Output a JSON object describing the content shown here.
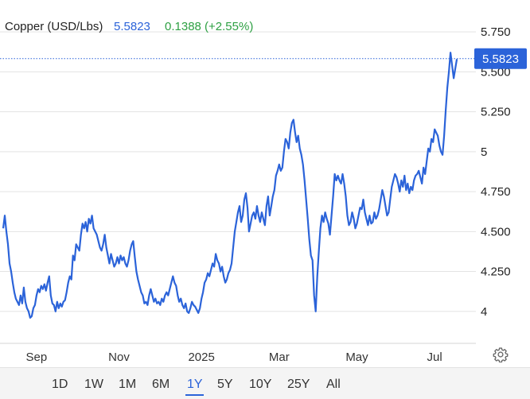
{
  "header": {
    "instrument": "Copper (USD/Lbs)",
    "price": "5.5823",
    "change": "0.1388 (+2.55%)"
  },
  "price_tag": "5.5823",
  "colors": {
    "line": "#2b63d9",
    "price_tag_bg": "#2b63d9",
    "change": "#2ea043",
    "grid": "#e3e3e3",
    "range_active": "#2b63d9"
  },
  "range_buttons": [
    "1D",
    "1W",
    "1M",
    "6M",
    "1Y",
    "5Y",
    "10Y",
    "25Y",
    "All"
  ],
  "range_active": "1Y",
  "settings_icon": "gear-icon",
  "chart_data": {
    "type": "line",
    "title": "Copper (USD/Lbs)",
    "xlabel": "",
    "ylabel": "",
    "grid": true,
    "y_axis_side": "right",
    "ylim": [
      3.8,
      5.85
    ],
    "y_ticks": [
      {
        "value": 4,
        "label": "4"
      },
      {
        "value": 4.25,
        "label": "4.250"
      },
      {
        "value": 4.5,
        "label": "4.500"
      },
      {
        "value": 4.75,
        "label": "4.750"
      },
      {
        "value": 5,
        "label": "5"
      },
      {
        "value": 5.25,
        "label": "5.250"
      },
      {
        "value": 5.5,
        "label": "5.500"
      },
      {
        "value": 5.75,
        "label": "5.750"
      }
    ],
    "x_ticks": [
      "Sep",
      "Nov",
      "2025",
      "Mar",
      "May",
      "Jul"
    ],
    "x_tick_positions": [
      21,
      73,
      125,
      174,
      223,
      272
    ],
    "x_domain": [
      0,
      295
    ],
    "last_value": 5.5823,
    "series": [
      {
        "values": [
          [
            0,
            4.52
          ],
          [
            1,
            4.6
          ],
          [
            2,
            4.5
          ],
          [
            3,
            4.42
          ],
          [
            4,
            4.3
          ],
          [
            5,
            4.25
          ],
          [
            6,
            4.18
          ],
          [
            7,
            4.12
          ],
          [
            8,
            4.08
          ],
          [
            9,
            4.06
          ],
          [
            10,
            4.04
          ],
          [
            11,
            4.1
          ],
          [
            12,
            4.05
          ],
          [
            13,
            4.15
          ],
          [
            14,
            4.06
          ],
          [
            15,
            4.02
          ],
          [
            16,
            4.0
          ],
          [
            17,
            3.96
          ],
          [
            18,
            3.97
          ],
          [
            19,
            4.02
          ],
          [
            20,
            4.04
          ],
          [
            21,
            4.1
          ],
          [
            22,
            4.14
          ],
          [
            23,
            4.12
          ],
          [
            24,
            4.16
          ],
          [
            25,
            4.14
          ],
          [
            26,
            4.17
          ],
          [
            27,
            4.13
          ],
          [
            28,
            4.18
          ],
          [
            29,
            4.22
          ],
          [
            30,
            4.1
          ],
          [
            31,
            4.05
          ],
          [
            32,
            4.04
          ],
          [
            33,
            4.0
          ],
          [
            34,
            4.06
          ],
          [
            35,
            4.02
          ],
          [
            36,
            4.05
          ],
          [
            37,
            4.03
          ],
          [
            38,
            4.06
          ],
          [
            39,
            4.07
          ],
          [
            40,
            4.12
          ],
          [
            41,
            4.18
          ],
          [
            42,
            4.22
          ],
          [
            43,
            4.2
          ],
          [
            44,
            4.35
          ],
          [
            45,
            4.32
          ],
          [
            46,
            4.42
          ],
          [
            47,
            4.4
          ],
          [
            48,
            4.38
          ],
          [
            49,
            4.48
          ],
          [
            50,
            4.55
          ],
          [
            51,
            4.52
          ],
          [
            52,
            4.56
          ],
          [
            53,
            4.5
          ],
          [
            54,
            4.58
          ],
          [
            55,
            4.55
          ],
          [
            56,
            4.6
          ],
          [
            57,
            4.52
          ],
          [
            58,
            4.5
          ],
          [
            59,
            4.48
          ],
          [
            60,
            4.44
          ],
          [
            61,
            4.4
          ],
          [
            62,
            4.38
          ],
          [
            63,
            4.42
          ],
          [
            64,
            4.48
          ],
          [
            65,
            4.4
          ],
          [
            66,
            4.35
          ],
          [
            67,
            4.3
          ],
          [
            68,
            4.36
          ],
          [
            69,
            4.32
          ],
          [
            70,
            4.28
          ],
          [
            71,
            4.3
          ],
          [
            72,
            4.34
          ],
          [
            73,
            4.3
          ],
          [
            74,
            4.35
          ],
          [
            75,
            4.32
          ],
          [
            76,
            4.34
          ],
          [
            77,
            4.3
          ],
          [
            78,
            4.28
          ],
          [
            79,
            4.32
          ],
          [
            80,
            4.38
          ],
          [
            81,
            4.42
          ],
          [
            82,
            4.44
          ],
          [
            83,
            4.34
          ],
          [
            84,
            4.25
          ],
          [
            85,
            4.2
          ],
          [
            86,
            4.16
          ],
          [
            87,
            4.12
          ],
          [
            88,
            4.1
          ],
          [
            89,
            4.05
          ],
          [
            90,
            4.06
          ],
          [
            91,
            4.04
          ],
          [
            92,
            4.1
          ],
          [
            93,
            4.14
          ],
          [
            94,
            4.1
          ],
          [
            95,
            4.06
          ],
          [
            96,
            4.08
          ],
          [
            97,
            4.05
          ],
          [
            98,
            4.06
          ],
          [
            99,
            4.04
          ],
          [
            100,
            4.08
          ],
          [
            101,
            4.06
          ],
          [
            102,
            4.1
          ],
          [
            103,
            4.12
          ],
          [
            104,
            4.1
          ],
          [
            105,
            4.14
          ],
          [
            106,
            4.18
          ],
          [
            107,
            4.22
          ],
          [
            108,
            4.18
          ],
          [
            109,
            4.16
          ],
          [
            110,
            4.1
          ],
          [
            111,
            4.06
          ],
          [
            112,
            4.08
          ],
          [
            113,
            4.04
          ],
          [
            114,
            4.02
          ],
          [
            115,
            4.05
          ],
          [
            116,
            4.0
          ],
          [
            117,
            3.99
          ],
          [
            118,
            4.02
          ],
          [
            119,
            4.06
          ],
          [
            120,
            4.04
          ],
          [
            121,
            4.03
          ],
          [
            122,
            4.01
          ],
          [
            123,
            3.99
          ],
          [
            124,
            4.02
          ],
          [
            125,
            4.08
          ],
          [
            126,
            4.12
          ],
          [
            127,
            4.18
          ],
          [
            128,
            4.2
          ],
          [
            129,
            4.24
          ],
          [
            130,
            4.22
          ],
          [
            131,
            4.26
          ],
          [
            132,
            4.3
          ],
          [
            133,
            4.28
          ],
          [
            134,
            4.36
          ],
          [
            135,
            4.32
          ],
          [
            136,
            4.3
          ],
          [
            137,
            4.25
          ],
          [
            138,
            4.28
          ],
          [
            139,
            4.22
          ],
          [
            140,
            4.18
          ],
          [
            141,
            4.2
          ],
          [
            142,
            4.24
          ],
          [
            143,
            4.26
          ],
          [
            144,
            4.3
          ],
          [
            145,
            4.4
          ],
          [
            146,
            4.5
          ],
          [
            147,
            4.56
          ],
          [
            148,
            4.62
          ],
          [
            149,
            4.66
          ],
          [
            150,
            4.56
          ],
          [
            151,
            4.6
          ],
          [
            152,
            4.7
          ],
          [
            153,
            4.74
          ],
          [
            154,
            4.65
          ],
          [
            155,
            4.5
          ],
          [
            156,
            4.55
          ],
          [
            157,
            4.6
          ],
          [
            158,
            4.62
          ],
          [
            159,
            4.58
          ],
          [
            160,
            4.66
          ],
          [
            161,
            4.6
          ],
          [
            162,
            4.56
          ],
          [
            163,
            4.62
          ],
          [
            164,
            4.58
          ],
          [
            165,
            4.54
          ],
          [
            166,
            4.66
          ],
          [
            167,
            4.72
          ],
          [
            168,
            4.6
          ],
          [
            169,
            4.66
          ],
          [
            170,
            4.72
          ],
          [
            171,
            4.76
          ],
          [
            172,
            4.85
          ],
          [
            173,
            4.88
          ],
          [
            174,
            4.92
          ],
          [
            175,
            4.88
          ],
          [
            176,
            4.9
          ],
          [
            177,
            5.0
          ],
          [
            178,
            5.08
          ],
          [
            179,
            5.06
          ],
          [
            180,
            5.02
          ],
          [
            181,
            5.12
          ],
          [
            182,
            5.18
          ],
          [
            183,
            5.2
          ],
          [
            184,
            5.12
          ],
          [
            185,
            5.06
          ],
          [
            186,
            5.1
          ],
          [
            187,
            5.02
          ],
          [
            188,
            4.98
          ],
          [
            189,
            4.92
          ],
          [
            190,
            4.82
          ],
          [
            191,
            4.7
          ],
          [
            192,
            4.58
          ],
          [
            193,
            4.45
          ],
          [
            194,
            4.35
          ],
          [
            195,
            4.32
          ],
          [
            196,
            4.1
          ],
          [
            197,
            4.0
          ],
          [
            198,
            4.22
          ],
          [
            199,
            4.38
          ],
          [
            200,
            4.52
          ],
          [
            201,
            4.6
          ],
          [
            202,
            4.56
          ],
          [
            203,
            4.62
          ],
          [
            204,
            4.58
          ],
          [
            205,
            4.55
          ],
          [
            206,
            4.48
          ],
          [
            207,
            4.6
          ],
          [
            208,
            4.72
          ],
          [
            209,
            4.86
          ],
          [
            210,
            4.82
          ],
          [
            211,
            4.85
          ],
          [
            212,
            4.82
          ],
          [
            213,
            4.8
          ],
          [
            214,
            4.86
          ],
          [
            215,
            4.8
          ],
          [
            216,
            4.72
          ],
          [
            217,
            4.6
          ],
          [
            218,
            4.54
          ],
          [
            219,
            4.56
          ],
          [
            220,
            4.62
          ],
          [
            221,
            4.58
          ],
          [
            222,
            4.52
          ],
          [
            223,
            4.55
          ],
          [
            224,
            4.6
          ],
          [
            225,
            4.65
          ],
          [
            226,
            4.64
          ],
          [
            227,
            4.7
          ],
          [
            228,
            4.62
          ],
          [
            229,
            4.58
          ],
          [
            230,
            4.54
          ],
          [
            231,
            4.6
          ],
          [
            232,
            4.55
          ],
          [
            233,
            4.56
          ],
          [
            234,
            4.62
          ],
          [
            235,
            4.58
          ],
          [
            236,
            4.6
          ],
          [
            237,
            4.64
          ],
          [
            238,
            4.7
          ],
          [
            239,
            4.76
          ],
          [
            240,
            4.72
          ],
          [
            241,
            4.66
          ],
          [
            242,
            4.6
          ],
          [
            243,
            4.62
          ],
          [
            244,
            4.7
          ],
          [
            245,
            4.78
          ],
          [
            246,
            4.82
          ],
          [
            247,
            4.86
          ],
          [
            248,
            4.84
          ],
          [
            249,
            4.8
          ],
          [
            250,
            4.75
          ],
          [
            251,
            4.82
          ],
          [
            252,
            4.78
          ],
          [
            253,
            4.85
          ],
          [
            254,
            4.76
          ],
          [
            255,
            4.8
          ],
          [
            256,
            4.74
          ],
          [
            257,
            4.78
          ],
          [
            258,
            4.76
          ],
          [
            259,
            4.82
          ],
          [
            260,
            4.85
          ],
          [
            261,
            4.86
          ],
          [
            262,
            4.88
          ],
          [
            263,
            4.84
          ],
          [
            264,
            4.8
          ],
          [
            265,
            4.9
          ],
          [
            266,
            4.86
          ],
          [
            267,
            4.94
          ],
          [
            268,
            5.02
          ],
          [
            269,
            5.0
          ],
          [
            270,
            5.08
          ],
          [
            271,
            5.06
          ],
          [
            272,
            5.14
          ],
          [
            273,
            5.12
          ],
          [
            274,
            5.1
          ],
          [
            275,
            5.04
          ],
          [
            276,
            5.0
          ],
          [
            277,
            4.98
          ],
          [
            278,
            5.1
          ],
          [
            279,
            5.26
          ],
          [
            280,
            5.4
          ],
          [
            281,
            5.5
          ],
          [
            282,
            5.62
          ],
          [
            283,
            5.54
          ],
          [
            284,
            5.46
          ],
          [
            285,
            5.52
          ],
          [
            286,
            5.58
          ]
        ]
      }
    ]
  }
}
